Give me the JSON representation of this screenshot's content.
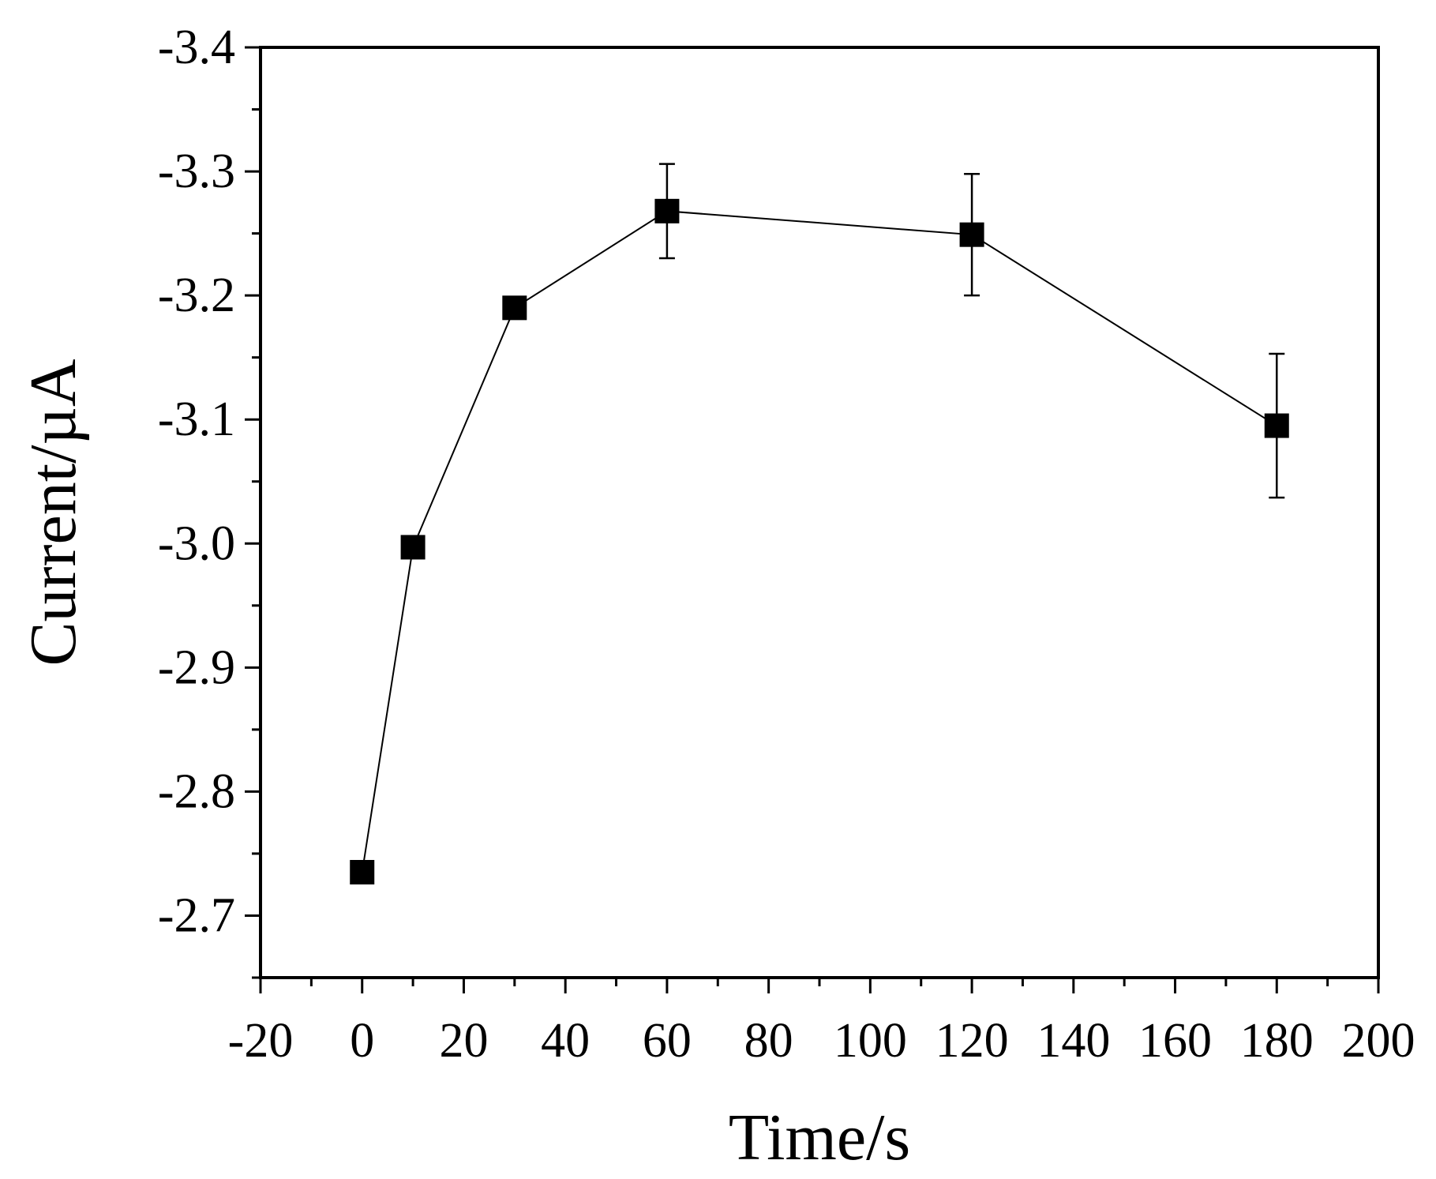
{
  "chart_data": {
    "type": "scatter",
    "title": "",
    "xlabel": "Time/s",
    "ylabel": "Current/µA",
    "xlim": [
      -20,
      200
    ],
    "ylim": [
      -2.65,
      -3.4
    ],
    "y_axis_inverted": true,
    "grid": false,
    "legend": "none",
    "x_ticks": [
      -20,
      0,
      20,
      40,
      60,
      80,
      100,
      120,
      140,
      160,
      180,
      200
    ],
    "x_tick_labels": [
      "-20",
      "0",
      "20",
      "40",
      "60",
      "80",
      "100",
      "120",
      "140",
      "160",
      "180",
      "200"
    ],
    "y_ticks": [
      -2.7,
      -2.8,
      -2.9,
      -3.0,
      -3.1,
      -3.2,
      -3.3,
      -3.4
    ],
    "y_tick_labels": [
      "-2.7",
      "-2.8",
      "-2.9",
      "-3.0",
      "-3.1",
      "-3.2",
      "-3.3",
      "-3.4"
    ],
    "series": [
      {
        "marker": "square",
        "color": "#000000",
        "connected": true,
        "x": [
          0,
          10,
          30,
          60,
          120,
          180
        ],
        "y": [
          -2.735,
          -2.997,
          -3.19,
          -3.268,
          -3.249,
          -3.095
        ],
        "error": [
          0,
          0,
          0,
          0.038,
          0.049,
          0.058
        ]
      }
    ]
  }
}
